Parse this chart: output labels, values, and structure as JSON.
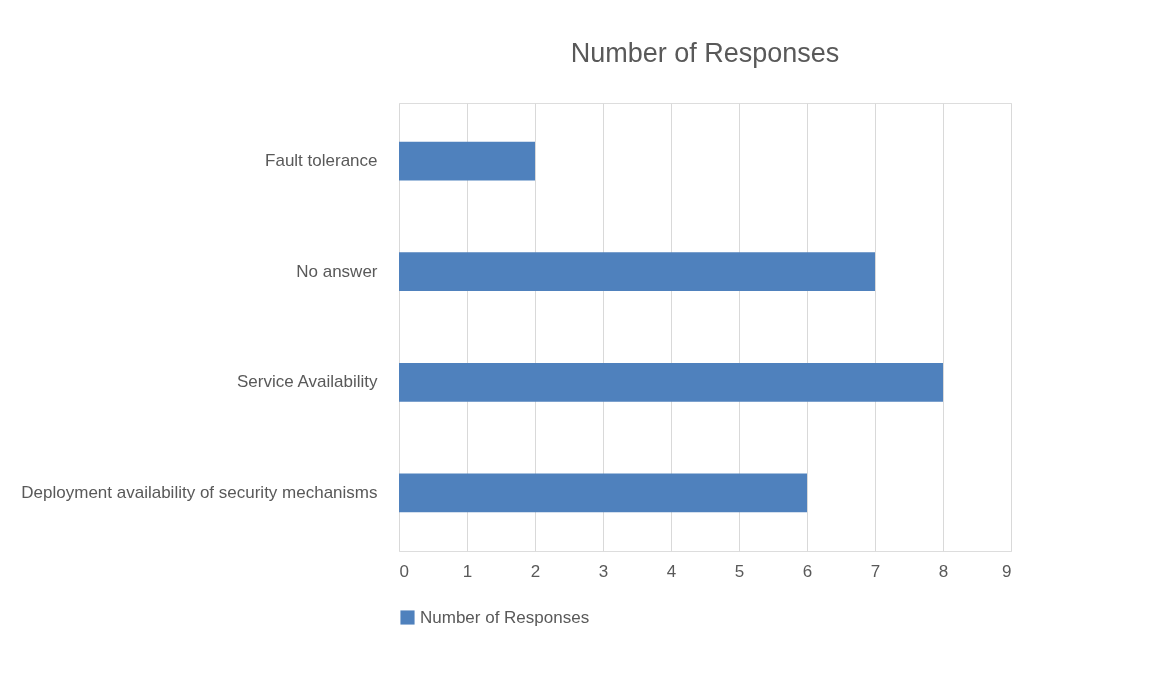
{
  "chart_data": {
    "type": "bar",
    "orientation": "horizontal",
    "title": "Number of Responses",
    "categories": [
      "Fault tolerance",
      "No answer",
      "Service Availability",
      "Deployment availability of security mechanisms"
    ],
    "series": [
      {
        "name": "Number of Responses",
        "color": "#4f81bd",
        "values": [
          2,
          7,
          8,
          6
        ]
      }
    ],
    "xlim": [
      0,
      9
    ],
    "xticks": [
      0,
      1,
      2,
      3,
      4,
      5,
      6,
      7,
      8,
      9
    ],
    "grid": "x",
    "legend": "bottom"
  }
}
